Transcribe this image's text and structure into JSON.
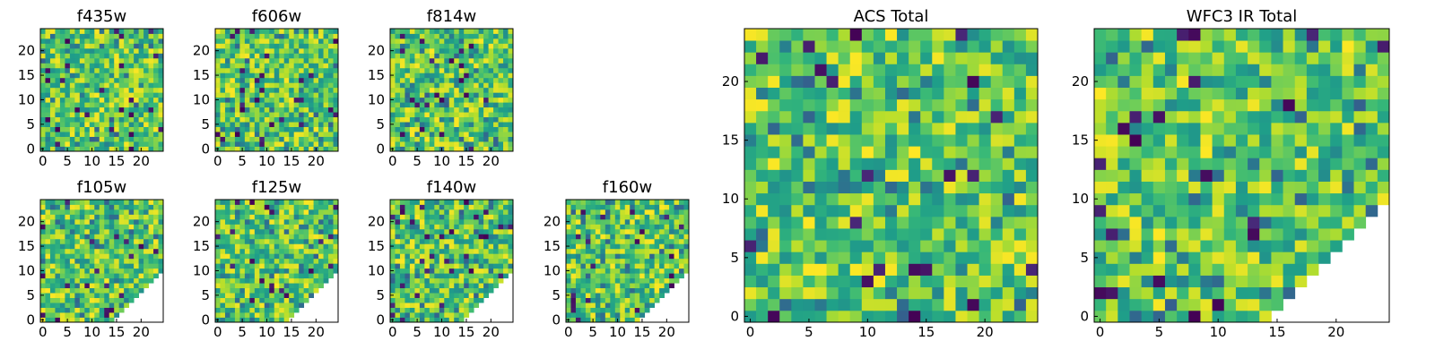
{
  "chart_data": [
    {
      "type": "heatmap",
      "title": "f435w",
      "xlim": [
        0,
        24
      ],
      "ylim": [
        0,
        24
      ],
      "xticks": [
        "0",
        "5",
        "10",
        "15",
        "20"
      ],
      "yticks": [
        "0",
        "5",
        "10",
        "15",
        "20"
      ],
      "mask": "none",
      "colormap": "viridis",
      "seed": 11
    },
    {
      "type": "heatmap",
      "title": "f606w",
      "xlim": [
        0,
        24
      ],
      "ylim": [
        0,
        24
      ],
      "xticks": [
        "0",
        "5",
        "10",
        "15",
        "20"
      ],
      "yticks": [
        "0",
        "5",
        "10",
        "15",
        "20"
      ],
      "mask": "none",
      "colormap": "viridis",
      "seed": 23
    },
    {
      "type": "heatmap",
      "title": "f814w",
      "xlim": [
        0,
        24
      ],
      "ylim": [
        0,
        24
      ],
      "xticks": [
        "0",
        "5",
        "10",
        "15",
        "20"
      ],
      "yticks": [
        "0",
        "5",
        "10",
        "15",
        "20"
      ],
      "mask": "none",
      "colormap": "viridis",
      "seed": 37
    },
    {
      "type": "heatmap",
      "title": "f105w",
      "xlim": [
        0,
        24
      ],
      "ylim": [
        0,
        24
      ],
      "xticks": [
        "0",
        "5",
        "10",
        "15",
        "20"
      ],
      "yticks": [
        "0",
        "5",
        "10",
        "15",
        "20"
      ],
      "mask": "lower-right triangle empty",
      "colormap": "viridis",
      "seed": 41
    },
    {
      "type": "heatmap",
      "title": "f125w",
      "xlim": [
        0,
        24
      ],
      "ylim": [
        0,
        24
      ],
      "xticks": [
        "0",
        "5",
        "10",
        "15",
        "20"
      ],
      "yticks": [
        "0",
        "5",
        "10",
        "15",
        "20"
      ],
      "mask": "lower-right triangle empty",
      "colormap": "viridis",
      "seed": 53
    },
    {
      "type": "heatmap",
      "title": "f140w",
      "xlim": [
        0,
        24
      ],
      "ylim": [
        0,
        24
      ],
      "xticks": [
        "0",
        "5",
        "10",
        "15",
        "20"
      ],
      "yticks": [
        "0",
        "5",
        "10",
        "15",
        "20"
      ],
      "mask": "lower-right triangle empty",
      "colormap": "viridis",
      "seed": 67
    },
    {
      "type": "heatmap",
      "title": "f160w",
      "xlim": [
        0,
        24
      ],
      "ylim": [
        0,
        24
      ],
      "xticks": [
        "0",
        "5",
        "10",
        "15",
        "20"
      ],
      "yticks": [
        "0",
        "5",
        "10",
        "15",
        "20"
      ],
      "mask": "lower-right triangle empty",
      "colormap": "viridis",
      "seed": 79
    },
    {
      "type": "heatmap",
      "title": "ACS Total",
      "xlim": [
        0,
        24
      ],
      "ylim": [
        0,
        24
      ],
      "xticks": [
        "0",
        "5",
        "10",
        "15",
        "20"
      ],
      "yticks": [
        "0",
        "5",
        "10",
        "15",
        "20"
      ],
      "mask": "none",
      "colormap": "viridis",
      "seed": 97
    },
    {
      "type": "heatmap",
      "title": "WFC3 IR Total",
      "xlim": [
        0,
        24
      ],
      "ylim": [
        0,
        24
      ],
      "xticks": [
        "0",
        "5",
        "10",
        "15",
        "20"
      ],
      "yticks": [
        "0",
        "5",
        "10",
        "15",
        "20"
      ],
      "mask": "lower-right triangle empty",
      "colormap": "viridis",
      "seed": 113
    }
  ]
}
